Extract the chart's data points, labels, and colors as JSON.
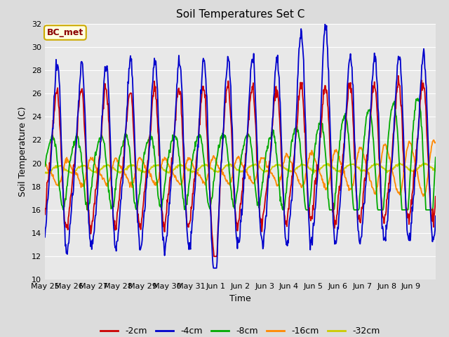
{
  "title": "Soil Temperatures Set C",
  "xlabel": "Time",
  "ylabel": "Soil Temperature (C)",
  "ylim": [
    10,
    32
  ],
  "annotation": "BC_met",
  "annotation_color": "#8B0000",
  "annotation_bg": "#FFFFE0",
  "annotation_border": "#CCAA00",
  "background_color": "#DCDCDC",
  "plot_bg": "#DCDCDC",
  "series": [
    {
      "label": "-2cm",
      "color": "#CC0000",
      "lw": 1.3
    },
    {
      "label": "-4cm",
      "color": "#0000CC",
      "lw": 1.3
    },
    {
      "label": "-8cm",
      "color": "#00AA00",
      "lw": 1.3
    },
    {
      "label": "-16cm",
      "color": "#FF8800",
      "lw": 1.3
    },
    {
      "label": "-32cm",
      "color": "#CCCC00",
      "lw": 1.3
    }
  ],
  "tick_labels": [
    "May 25",
    "May 26",
    "May 27",
    "May 28",
    "May 29",
    "May 30",
    "May 31",
    "Jun 1",
    "Jun 2",
    "Jun 3",
    "Jun 4",
    "Jun 5",
    "Jun 6",
    "Jun 7",
    "Jun 8",
    "Jun 9"
  ],
  "yticks": [
    10,
    12,
    14,
    16,
    18,
    20,
    22,
    24,
    26,
    28,
    30,
    32
  ]
}
